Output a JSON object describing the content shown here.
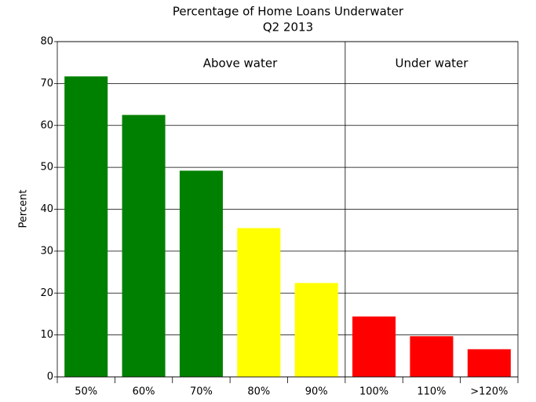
{
  "chart_data": {
    "type": "bar",
    "title": "Percentage of Home Loans Underwater",
    "subtitle": "Q2 2013",
    "y_label": "Percent",
    "annotations": [
      "Above water",
      "Under water"
    ],
    "categories": [
      "50%",
      "60%",
      "70%",
      "80%",
      "90%",
      "100%",
      "110%",
      ">120%"
    ],
    "values": [
      71.7,
      62.5,
      49.2,
      35.5,
      22.4,
      14.4,
      9.7,
      6.6
    ],
    "colors": [
      "#008000",
      "#008000",
      "#008000",
      "#ffff00",
      "#ffff00",
      "#ff0000",
      "#ff0000",
      "#ff0000"
    ],
    "ylim": [
      0,
      80
    ],
    "yticks": [
      0,
      10,
      20,
      30,
      40,
      50,
      60,
      70,
      80
    ],
    "grid": true
  }
}
